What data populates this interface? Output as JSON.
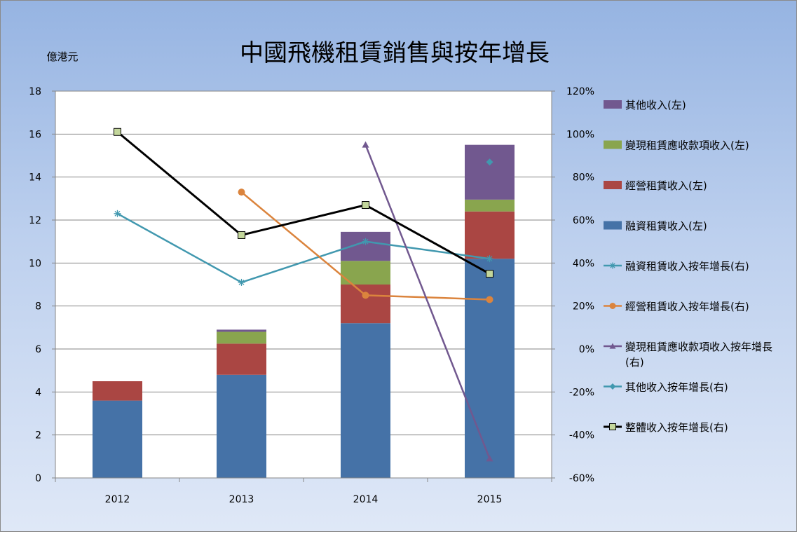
{
  "chart_data": {
    "type": "bar",
    "title": "中國飛機租賃銷售與按年增長",
    "ylabel": "億港元",
    "categories": [
      "2012",
      "2013",
      "2014",
      "2015"
    ],
    "ylim": [
      0,
      18
    ],
    "y2lim": [
      -60,
      120
    ],
    "y_ticks": [
      "0",
      "2",
      "4",
      "6",
      "8",
      "10",
      "12",
      "14",
      "16",
      "18"
    ],
    "y2_ticks": [
      "-60%",
      "-40%",
      "-20%",
      "0%",
      "20%",
      "40%",
      "60%",
      "80%",
      "100%",
      "120%"
    ],
    "grid": true,
    "legend_position": "right",
    "bar_series": [
      {
        "name": "融資租賃收入(左)",
        "color": "#4572a7",
        "values": [
          3.6,
          4.8,
          7.2,
          10.2
        ]
      },
      {
        "name": "經營租賃收入(左)",
        "color": "#aa4643",
        "values": [
          0.9,
          1.45,
          1.8,
          2.2
        ]
      },
      {
        "name": "變現租賃應收款項收入(左)",
        "color": "#89a54e",
        "values": [
          0,
          0.55,
          1.1,
          0.55
        ]
      },
      {
        "name": "其他收入(左)",
        "color": "#71588f",
        "values": [
          0,
          0.1,
          1.35,
          2.55
        ]
      }
    ],
    "line_series": [
      {
        "name": "融資租賃收入按年增長(右)",
        "color": "#4198af",
        "marker": "star",
        "values": [
          63,
          31,
          50,
          42
        ]
      },
      {
        "name": "經營租賃收入按年增長(右)",
        "color": "#db843d",
        "marker": "circle",
        "values": [
          null,
          73,
          25,
          23
        ]
      },
      {
        "name": "變現租賃應收款項收入按年增長(右)",
        "color": "#71588f",
        "marker": "triangle",
        "values": [
          null,
          null,
          95,
          -51
        ]
      },
      {
        "name": "其他收入按年增長(右)",
        "color": "#4198af",
        "marker": "diamond",
        "values": [
          null,
          null,
          null,
          87
        ]
      },
      {
        "name": "整體收入按年增長(右)",
        "color": "#000000",
        "marker": "square",
        "values": [
          101,
          53,
          67,
          35
        ]
      }
    ],
    "legend_order": [
      "其他收入(左)",
      "變現租賃應收款項收入(左)",
      "經營租賃收入(左)",
      "融資租賃收入(左)",
      "融資租賃收入按年增長(右)",
      "經營租賃收入按年增長(右)",
      "變現租賃應收款項收入按年增長(右)",
      "其他收入按年增長(右)",
      "整體收入按年增長(右)"
    ]
  }
}
